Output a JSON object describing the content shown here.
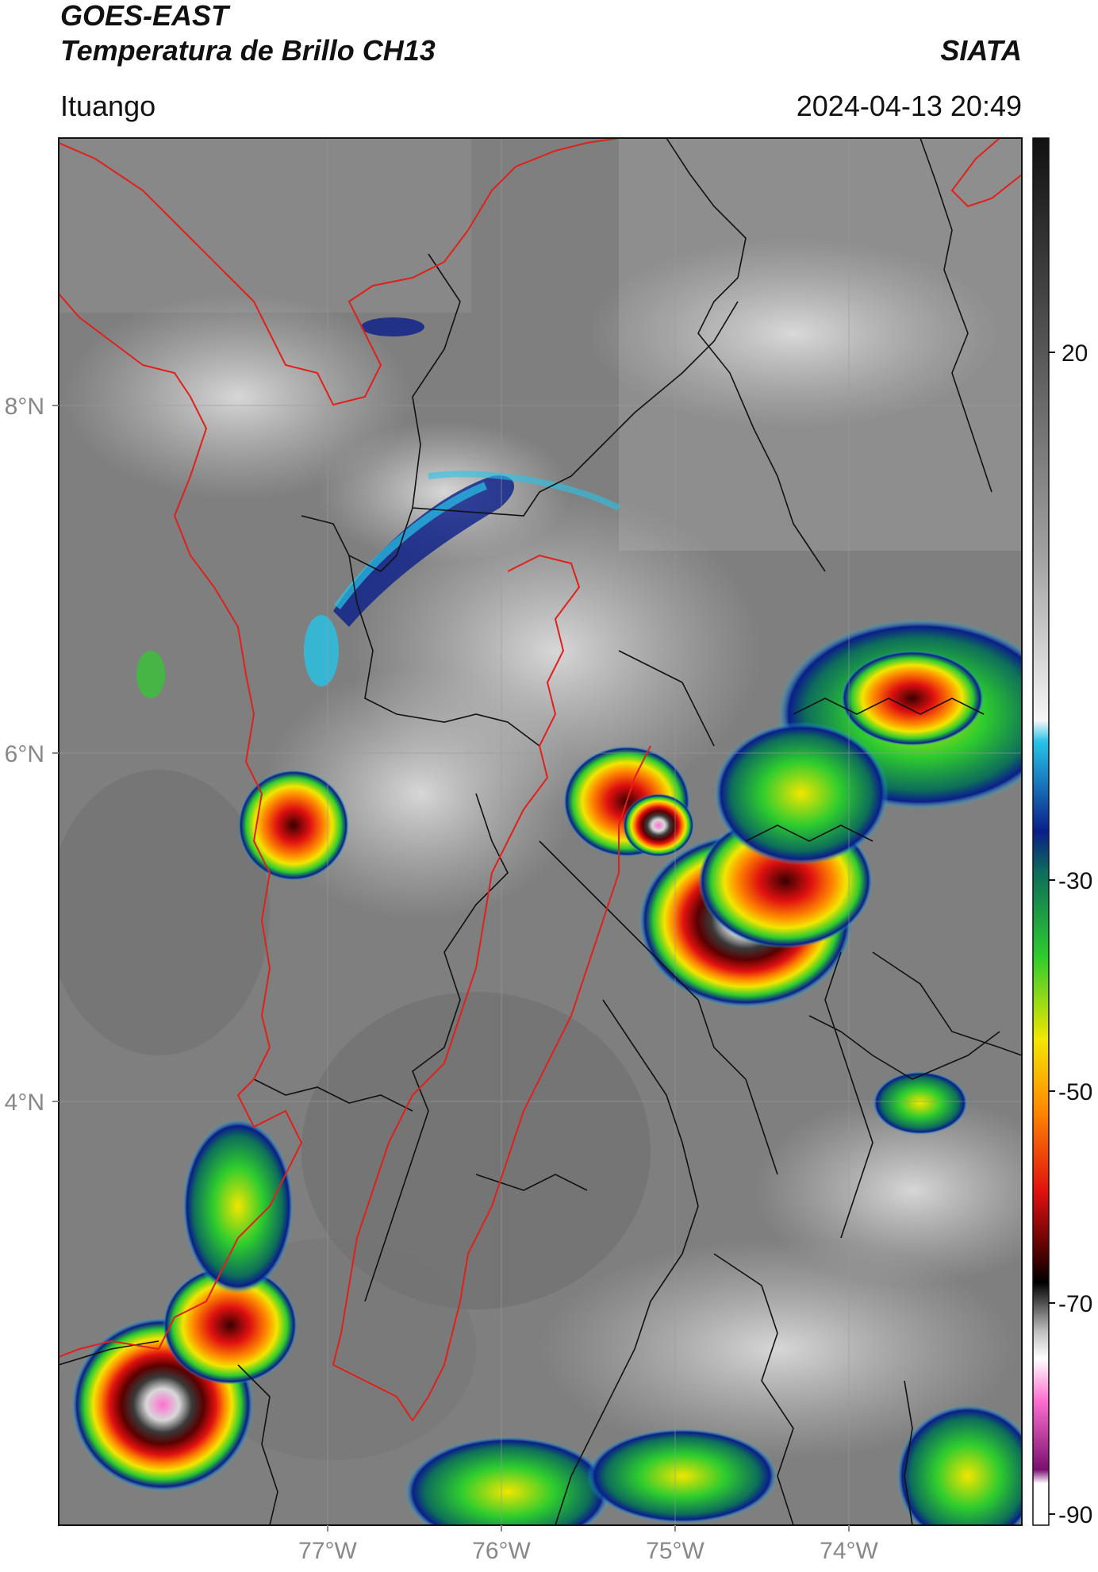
{
  "header": {
    "satellite": "GOES-EAST",
    "product": "Temperatura de Brillo CH13",
    "organization": "SIATA",
    "location": "Ituango",
    "datetime": "2024-04-13 20:49"
  },
  "axes": {
    "lat_ticks": [
      "8°N",
      "6°N",
      "4°N"
    ],
    "lon_ticks": [
      "77°W",
      "76°W",
      "75°W",
      "74°W"
    ]
  },
  "colorbar": {
    "ticks": [
      "20",
      "-30",
      "-50",
      "-70",
      "-90"
    ],
    "stops": [
      {
        "color": "#1a1a1a"
      },
      {
        "color": "#555555"
      },
      {
        "color": "#9a9a9a"
      },
      {
        "color": "#e0e0e0"
      },
      {
        "color": "#ffffff"
      },
      {
        "color": "#26c4e8"
      },
      {
        "color": "#0a1e8a"
      },
      {
        "color": "#0e6e5a"
      },
      {
        "color": "#2ecc2e"
      },
      {
        "color": "#f2e600"
      },
      {
        "color": "#ff8a00"
      },
      {
        "color": "#e01010"
      },
      {
        "color": "#3a0000"
      },
      {
        "color": "#000000"
      },
      {
        "color": "#bdbdbd"
      },
      {
        "color": "#ff6fd0"
      },
      {
        "color": "#7a1070"
      },
      {
        "color": "#ffffff"
      }
    ]
  },
  "colors": {
    "department_border": "#e0201a",
    "municipal_border": "#111111",
    "grid": "#9a9a9a"
  }
}
